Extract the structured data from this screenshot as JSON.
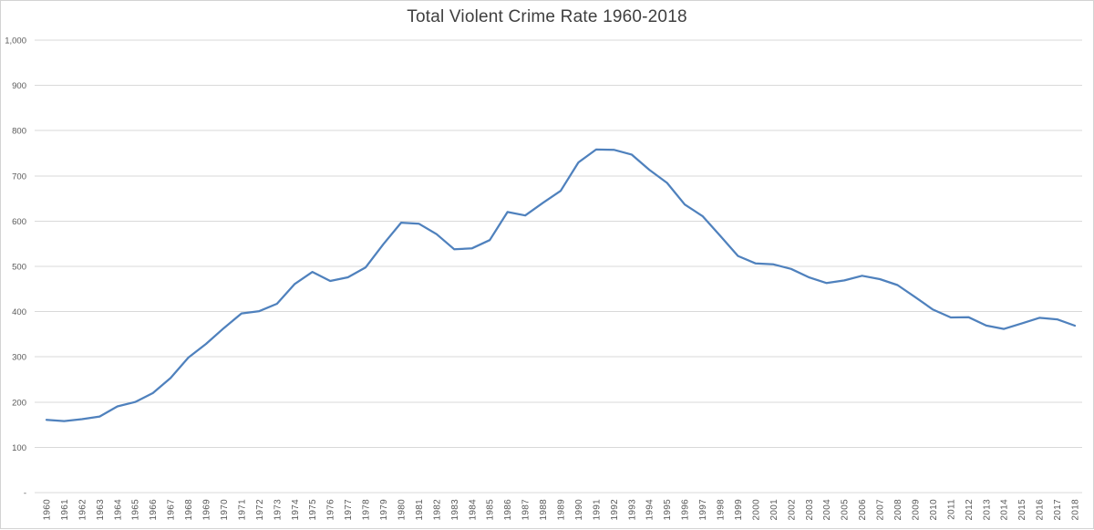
{
  "chart_data": {
    "type": "line",
    "title": "Total Violent Crime Rate 1960-2018",
    "xlabel": "",
    "ylabel": "",
    "ylim": [
      0,
      1000
    ],
    "ytick_interval": 100,
    "ytick_labels": [
      "-",
      "100",
      "200",
      "300",
      "400",
      "500",
      "600",
      "700",
      "800",
      "900",
      "1,000"
    ],
    "grid": "horizontal",
    "legend": "none",
    "x": [
      1960,
      1961,
      1962,
      1963,
      1964,
      1965,
      1966,
      1967,
      1968,
      1969,
      1970,
      1971,
      1972,
      1973,
      1974,
      1975,
      1976,
      1977,
      1978,
      1979,
      1980,
      1981,
      1982,
      1983,
      1984,
      1985,
      1986,
      1987,
      1988,
      1989,
      1990,
      1991,
      1992,
      1993,
      1994,
      1995,
      1996,
      1997,
      1998,
      1999,
      2000,
      2001,
      2002,
      2003,
      2004,
      2005,
      2006,
      2007,
      2008,
      2009,
      2010,
      2011,
      2012,
      2013,
      2014,
      2015,
      2016,
      2017,
      2018
    ],
    "series": [
      {
        "name": "Total Violent Crime Rate",
        "values": [
          160.9,
          158.1,
          162.3,
          168.2,
          190.6,
          200.2,
          220.0,
          253.2,
          298.4,
          328.7,
          363.5,
          396.0,
          401.0,
          417.4,
          461.1,
          487.8,
          467.8,
          475.9,
          497.8,
          548.9,
          596.6,
          594.3,
          571.1,
          537.7,
          539.9,
          558.1,
          620.1,
          612.5,
          640.6,
          666.9,
          729.6,
          758.2,
          757.7,
          747.1,
          713.6,
          684.5,
          636.6,
          611.0,
          567.6,
          523.0,
          506.5,
          504.5,
          494.4,
          475.8,
          463.2,
          469.0,
          479.3,
          471.8,
          458.6,
          431.9,
          404.5,
          387.1,
          387.8,
          369.1,
          361.6,
          373.7,
          386.3,
          382.9,
          368.9
        ]
      }
    ],
    "colors": {
      "line": "#4f81bd",
      "gridline": "#d9d9d9",
      "tick_label": "#595959",
      "title": "#3f3f3f",
      "background": "#ffffff",
      "frame_border": "#d3d3d3"
    }
  }
}
